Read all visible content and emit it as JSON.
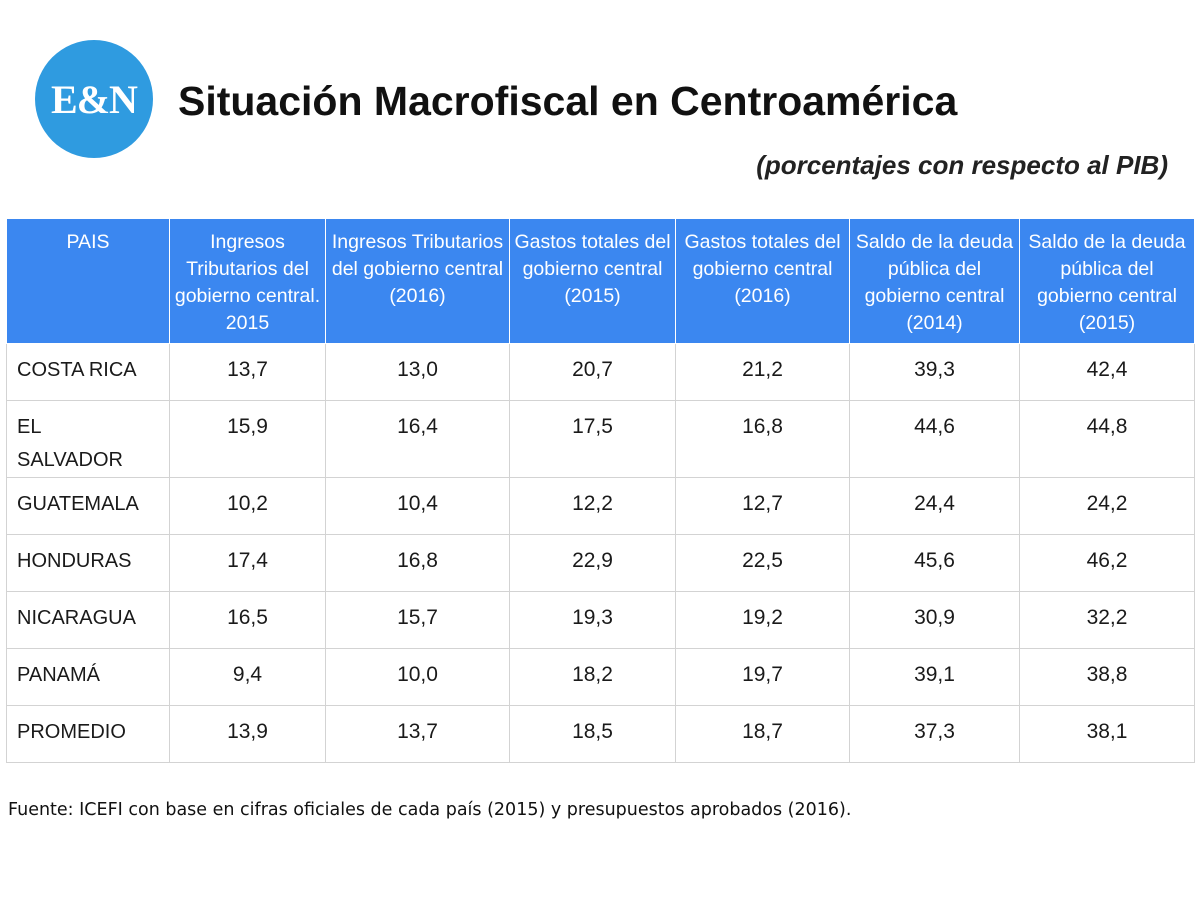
{
  "logo": {
    "text": "E&N",
    "color": "#2f9be0"
  },
  "title": "Situación Macrofiscal en Centroamérica",
  "subtitle": "(porcentajes con respecto al PIB)",
  "header_color": "#3b87f0",
  "chart_data": {
    "type": "table",
    "title": "Situación Macrofiscal en Centroamérica",
    "subtitle": "(porcentajes con respecto al PIB)",
    "columns": [
      "PAIS",
      "Ingresos Tributarios del gobierno central. 2015",
      "Ingresos Tributarios del gobierno central (2016)",
      "Gastos totales del gobierno central (2015)",
      "Gastos totales del gobierno central (2016)",
      "Saldo de la deuda pública del gobierno central (2014)",
      "Saldo de la deuda pública del gobierno central (2015)"
    ],
    "rows": [
      [
        "COSTA RICA",
        "13,7",
        "13,0",
        "20,7",
        "21,2",
        "39,3",
        "42,4"
      ],
      [
        "EL SALVADOR",
        "15,9",
        "16,4",
        "17,5",
        "16,8",
        "44,6",
        "44,8"
      ],
      [
        "GUATEMALA",
        "10,2",
        "10,4",
        "12,2",
        "12,7",
        "24,4",
        "24,2"
      ],
      [
        "HONDURAS",
        "17,4",
        "16,8",
        "22,9",
        "22,5",
        "45,6",
        "46,2"
      ],
      [
        "NICARAGUA",
        "16,5",
        "15,7",
        "19,3",
        "19,2",
        "30,9",
        "32,2"
      ],
      [
        "PANAMÁ",
        "9,4",
        "10,0",
        "18,2",
        "19,7",
        "39,1",
        "38,8"
      ],
      [
        "PROMEDIO",
        "13,9",
        "13,7",
        "18,5",
        "18,7",
        "37,3",
        "38,1"
      ]
    ]
  },
  "source": "Fuente: ICEFI con base en cifras oficiales de cada país (2015) y presupuestos aprobados (2016)."
}
